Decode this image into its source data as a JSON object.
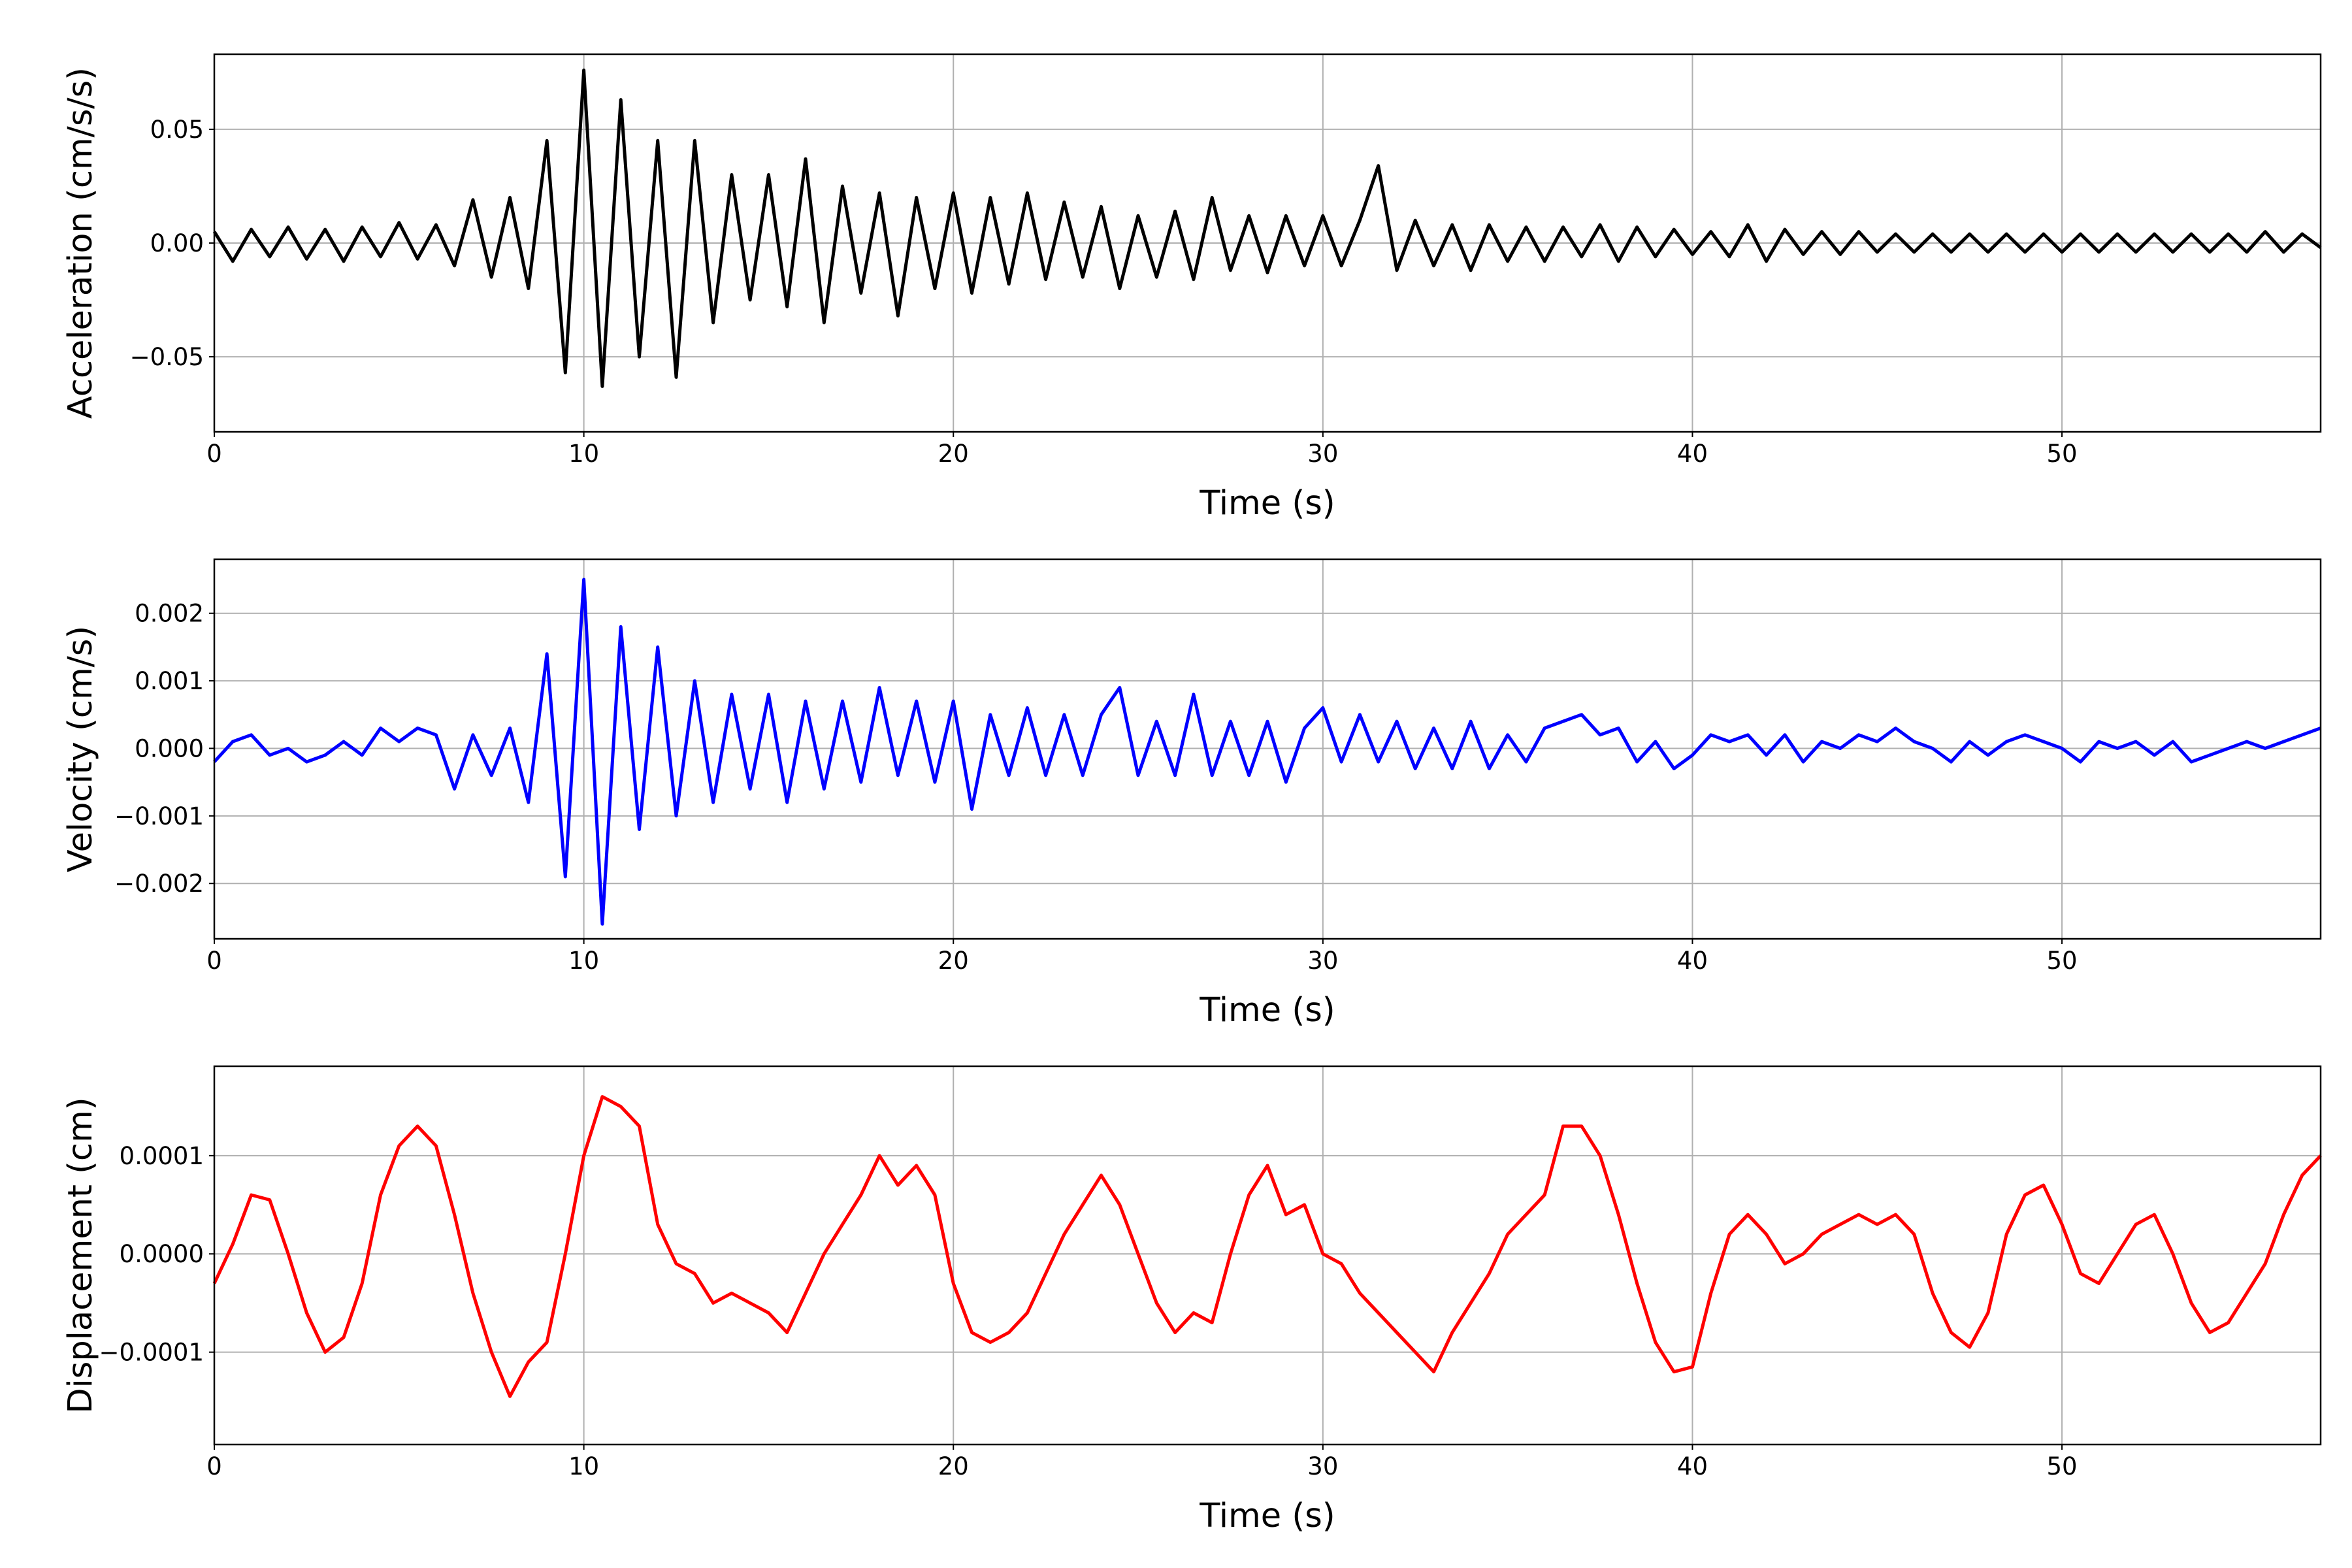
{
  "chart_data": [
    {
      "type": "line",
      "xlabel": "Time (s)",
      "ylabel": "Acceleration (cm/s/s)",
      "color": "#000000",
      "grid": true,
      "xlim": [
        0,
        57
      ],
      "xticks": [
        0,
        10,
        20,
        30,
        40,
        50
      ],
      "ylim": [
        -0.083,
        0.083
      ],
      "yticks": [
        {
          "value": -0.05,
          "label": "−0.05"
        },
        {
          "value": 0,
          "label": "0.00"
        },
        0.05
      ],
      "x": [
        0,
        0.5,
        1,
        1.5,
        2,
        2.5,
        3,
        3.5,
        4,
        4.5,
        5,
        5.5,
        6,
        6.5,
        7,
        7.5,
        8,
        8.5,
        9,
        9.5,
        10,
        10.5,
        11,
        11.5,
        12,
        12.5,
        13,
        13.5,
        14,
        14.5,
        15,
        15.5,
        16,
        16.5,
        17,
        17.5,
        18,
        18.5,
        19,
        19.5,
        20,
        20.5,
        21,
        21.5,
        22,
        22.5,
        23,
        23.5,
        24,
        24.5,
        25,
        25.5,
        26,
        26.5,
        27,
        27.5,
        28,
        28.5,
        29,
        29.5,
        30,
        30.5,
        31,
        31.5,
        32,
        32.5,
        33,
        33.5,
        34,
        34.5,
        35,
        35.5,
        36,
        36.5,
        37,
        37.5,
        38,
        38.5,
        39,
        39.5,
        40,
        40.5,
        41,
        41.5,
        42,
        42.5,
        43,
        43.5,
        44,
        44.5,
        45,
        45.5,
        46,
        46.5,
        47,
        47.5,
        48,
        48.5,
        49,
        49.5,
        50,
        50.5,
        51,
        51.5,
        52,
        52.5,
        53,
        53.5,
        54,
        54.5,
        55,
        55.5,
        56,
        56.5,
        57
      ],
      "values": [
        0.005,
        -0.008,
        0.006,
        -0.006,
        0.007,
        -0.007,
        0.006,
        -0.008,
        0.007,
        -0.006,
        0.009,
        -0.007,
        0.008,
        -0.01,
        0.019,
        -0.015,
        0.02,
        -0.02,
        0.045,
        -0.057,
        0.076,
        -0.063,
        0.063,
        -0.05,
        0.045,
        -0.059,
        0.045,
        -0.035,
        0.03,
        -0.025,
        0.03,
        -0.028,
        0.037,
        -0.035,
        0.025,
        -0.022,
        0.022,
        -0.032,
        0.02,
        -0.02,
        0.022,
        -0.022,
        0.02,
        -0.018,
        0.022,
        -0.016,
        0.018,
        -0.015,
        0.016,
        -0.02,
        0.012,
        -0.015,
        0.014,
        -0.016,
        0.02,
        -0.012,
        0.012,
        -0.013,
        0.012,
        -0.01,
        0.012,
        -0.01,
        0.01,
        0.034,
        -0.012,
        0.01,
        -0.01,
        0.008,
        -0.012,
        0.008,
        -0.008,
        0.007,
        -0.008,
        0.007,
        -0.006,
        0.008,
        -0.008,
        0.007,
        -0.006,
        0.006,
        -0.005,
        0.005,
        -0.006,
        0.008,
        -0.008,
        0.006,
        -0.005,
        0.005,
        -0.005,
        0.005,
        -0.004,
        0.004,
        -0.004,
        0.004,
        -0.004,
        0.004,
        -0.004,
        0.004,
        -0.004,
        0.004,
        -0.004,
        0.004,
        -0.004,
        0.004,
        -0.004,
        0.004,
        -0.004,
        0.004,
        -0.004,
        0.004,
        -0.004,
        0.005,
        -0.004,
        0.004,
        -0.002
      ]
    },
    {
      "type": "line",
      "xlabel": "Time (s)",
      "ylabel": "Velocity (cm/s)",
      "color": "#0000ff",
      "grid": true,
      "xlim": [
        0,
        57
      ],
      "xticks": [
        0,
        10,
        20,
        30,
        40,
        50
      ],
      "ylim": [
        -0.00282,
        0.0028
      ],
      "yticks": [
        {
          "value": -0.002,
          "label": "−0.002"
        },
        {
          "value": -0.001,
          "label": "−0.001"
        },
        {
          "value": 0,
          "label": "0.000"
        },
        0.001,
        0.002
      ],
      "x": [
        0,
        0.5,
        1,
        1.5,
        2,
        2.5,
        3,
        3.5,
        4,
        4.5,
        5,
        5.5,
        6,
        6.5,
        7,
        7.5,
        8,
        8.5,
        9,
        9.5,
        10,
        10.5,
        11,
        11.5,
        12,
        12.5,
        13,
        13.5,
        14,
        14.5,
        15,
        15.5,
        16,
        16.5,
        17,
        17.5,
        18,
        18.5,
        19,
        19.5,
        20,
        20.5,
        21,
        21.5,
        22,
        22.5,
        23,
        23.5,
        24,
        24.5,
        25,
        25.5,
        26,
        26.5,
        27,
        27.5,
        28,
        28.5,
        29,
        29.5,
        30,
        30.5,
        31,
        31.5,
        32,
        32.5,
        33,
        33.5,
        34,
        34.5,
        35,
        35.5,
        36,
        36.5,
        37,
        37.5,
        38,
        38.5,
        39,
        39.5,
        40,
        40.5,
        41,
        41.5,
        42,
        42.5,
        43,
        43.5,
        44,
        44.5,
        45,
        45.5,
        46,
        46.5,
        47,
        47.5,
        48,
        48.5,
        49,
        49.5,
        50,
        50.5,
        51,
        51.5,
        52,
        52.5,
        53,
        53.5,
        54,
        54.5,
        55,
        55.5,
        56,
        56.5,
        57
      ],
      "values": [
        -0.0002,
        0.0001,
        0.0002,
        -0.0001,
        0,
        -0.0002,
        -0.0001,
        0.0001,
        -0.0001,
        0.0003,
        0.0001,
        0.0003,
        0.0002,
        -0.0006,
        0.0002,
        -0.0004,
        0.0003,
        -0.0008,
        0.0014,
        -0.0019,
        0.0025,
        -0.0026,
        0.0018,
        -0.0012,
        0.0015,
        -0.001,
        0.001,
        -0.0008,
        0.0008,
        -0.0006,
        0.0008,
        -0.0008,
        0.0007,
        -0.0006,
        0.0007,
        -0.0005,
        0.0009,
        -0.0004,
        0.0007,
        -0.0005,
        0.0007,
        -0.0009,
        0.0005,
        -0.0004,
        0.0006,
        -0.0004,
        0.0005,
        -0.0004,
        0.0005,
        0.0009,
        -0.0004,
        0.0004,
        -0.0004,
        0.0008,
        -0.0004,
        0.0004,
        -0.0004,
        0.0004,
        -0.0005,
        0.0003,
        0.0006,
        -0.0002,
        0.0005,
        -0.0002,
        0.0004,
        -0.0003,
        0.0003,
        -0.0003,
        0.0004,
        -0.0003,
        0.0002,
        -0.0002,
        0.0003,
        0.0004,
        0.0005,
        0.0002,
        0.0003,
        -0.0002,
        0.0001,
        -0.0003,
        -0.0001,
        0.0002,
        0.0001,
        0.0002,
        -0.0001,
        0.0002,
        -0.0002,
        0.0001,
        0,
        0.0002,
        0.0001,
        0.0003,
        0.0001,
        0,
        -0.0002,
        0.0001,
        -0.0001,
        0.0001,
        0.0002,
        0.0001,
        0,
        -0.0002,
        0.0001,
        0,
        0.0001,
        -0.0001,
        0.0001,
        -0.0002,
        -0.0001,
        0,
        0.0001,
        0,
        0.0001,
        0.0002,
        0.0003
      ]
    },
    {
      "type": "line",
      "xlabel": "Time (s)",
      "ylabel": "Displacement (cm)",
      "color": "#ff0000",
      "grid": true,
      "xlim": [
        0,
        57
      ],
      "xticks": [
        0,
        10,
        20,
        30,
        40,
        50
      ],
      "ylim": [
        -0.000194,
        0.000191
      ],
      "yticks": [
        {
          "value": -0.0001,
          "label": "−0.0001"
        },
        {
          "value": 0,
          "label": "0.0000"
        },
        0.0001
      ],
      "x": [
        0,
        0.5,
        1,
        1.5,
        2,
        2.5,
        3,
        3.5,
        4,
        4.5,
        5,
        5.5,
        6,
        6.5,
        7,
        7.5,
        8,
        8.5,
        9,
        9.5,
        10,
        10.5,
        11,
        11.5,
        12,
        12.5,
        13,
        13.5,
        14,
        14.5,
        15,
        15.5,
        16,
        16.5,
        17,
        17.5,
        18,
        18.5,
        19,
        19.5,
        20,
        20.5,
        21,
        21.5,
        22,
        22.5,
        23,
        23.5,
        24,
        24.5,
        25,
        25.5,
        26,
        26.5,
        27,
        27.5,
        28,
        28.5,
        29,
        29.5,
        30,
        30.5,
        31,
        31.5,
        32,
        32.5,
        33,
        33.5,
        34,
        34.5,
        35,
        35.5,
        36,
        36.5,
        37,
        37.5,
        38,
        38.5,
        39,
        39.5,
        40,
        40.5,
        41,
        41.5,
        42,
        42.5,
        43,
        43.5,
        44,
        44.5,
        45,
        45.5,
        46,
        46.5,
        47,
        47.5,
        48,
        48.5,
        49,
        49.5,
        50,
        50.5,
        51,
        51.5,
        52,
        52.5,
        53,
        53.5,
        54,
        54.5,
        55,
        55.5,
        56,
        56.5,
        57
      ],
      "values": [
        -3e-05,
        1e-05,
        6e-05,
        5.5e-05,
        0,
        -6e-05,
        -0.0001,
        -8.5e-05,
        -3e-05,
        6e-05,
        0.00011,
        0.00013,
        0.00011,
        4e-05,
        -4e-05,
        -0.0001,
        -0.000145,
        -0.00011,
        -9e-05,
        0,
        0.0001,
        0.00016,
        0.00015,
        0.00013,
        3e-05,
        -1e-05,
        -2e-05,
        -5e-05,
        -4e-05,
        -5e-05,
        -6e-05,
        -8e-05,
        -4e-05,
        0,
        3e-05,
        6e-05,
        0.0001,
        7e-05,
        9e-05,
        6e-05,
        -3e-05,
        -8e-05,
        -9e-05,
        -8e-05,
        -6e-05,
        -2e-05,
        2e-05,
        5e-05,
        8e-05,
        5e-05,
        0,
        -5e-05,
        -8e-05,
        -6e-05,
        -7e-05,
        0,
        6e-05,
        9e-05,
        4e-05,
        5e-05,
        0,
        -1e-05,
        -4e-05,
        -6e-05,
        -8e-05,
        -0.0001,
        -0.00012,
        -8e-05,
        -5e-05,
        -2e-05,
        2e-05,
        4e-05,
        6e-05,
        0.00013,
        0.00013,
        0.0001,
        4e-05,
        -3e-05,
        -9e-05,
        -0.00012,
        -0.000115,
        -4e-05,
        2e-05,
        4e-05,
        2e-05,
        -1e-05,
        0,
        2e-05,
        3e-05,
        4e-05,
        3e-05,
        4e-05,
        2e-05,
        -4e-05,
        -8e-05,
        -9.5e-05,
        -6e-05,
        2e-05,
        6e-05,
        7e-05,
        3e-05,
        -2e-05,
        -3e-05,
        0,
        3e-05,
        4e-05,
        0,
        -5e-05,
        -8e-05,
        -7e-05,
        -4e-05,
        -1e-05,
        4e-05,
        8e-05,
        0.0001
      ]
    }
  ]
}
